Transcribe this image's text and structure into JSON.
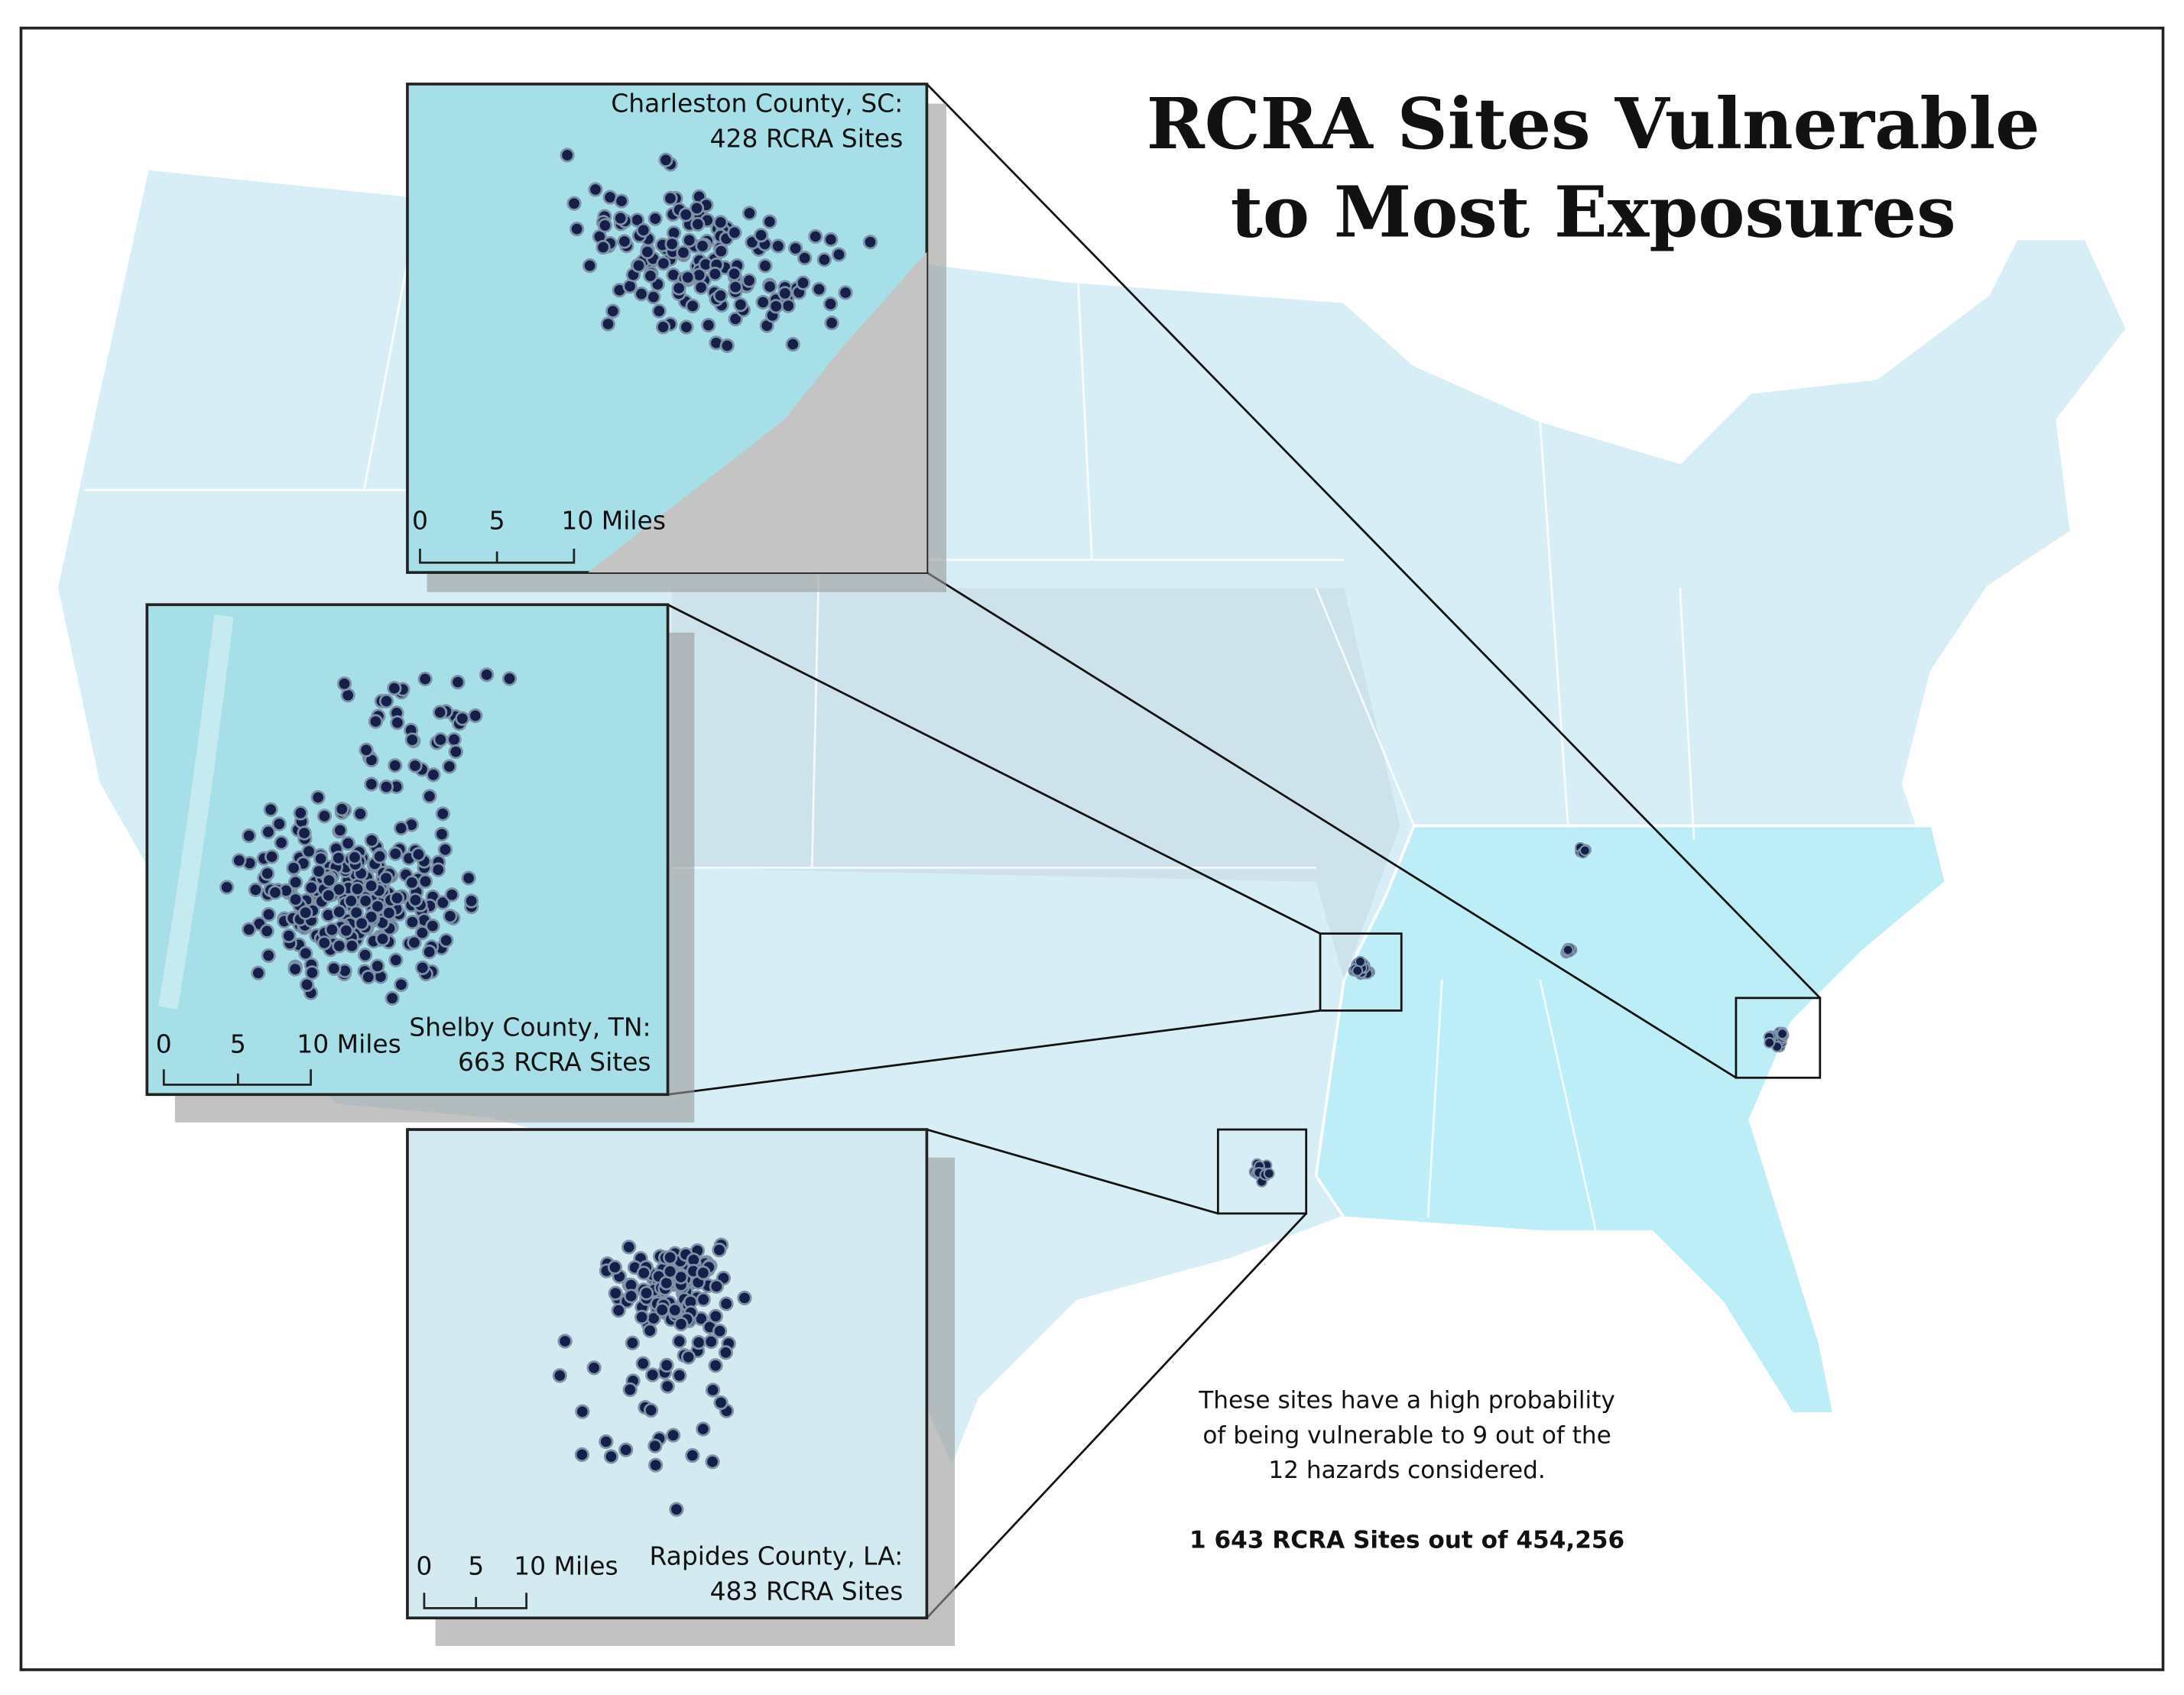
{
  "title": [
    "RCRA Sites Vulnerable",
    "to Most Exposures"
  ],
  "insets": [
    {
      "county": "Charleston County, SC:",
      "sites": "428 RCRA Sites",
      "scale": [
        "0",
        "5",
        "10 Miles"
      ]
    },
    {
      "county": "Shelby County, TN:",
      "sites": "663 RCRA Sites",
      "scale": [
        "0",
        "5",
        "10 Miles"
      ]
    },
    {
      "county": "Rapides County, LA:",
      "sites": "483 RCRA Sites",
      "scale": [
        "0",
        "5",
        "10 Miles"
      ]
    }
  ],
  "note": [
    "These sites have a high probability",
    "of being vulnerable to 9 out of the",
    "12 hazards considered."
  ],
  "summary": "1 643 RCRA Sites out of 454,256"
}
